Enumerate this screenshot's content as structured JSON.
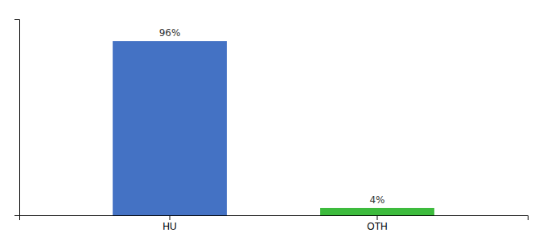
{
  "chart_data": {
    "type": "bar",
    "categories": [
      "HU",
      "OTH"
    ],
    "values": [
      96,
      4
    ],
    "value_labels": [
      "96%",
      "4%"
    ],
    "colors": [
      "#4472c4",
      "#3dbb3d"
    ],
    "ylim": [
      0,
      108
    ],
    "data_labels": true,
    "tick_labels": "x"
  }
}
